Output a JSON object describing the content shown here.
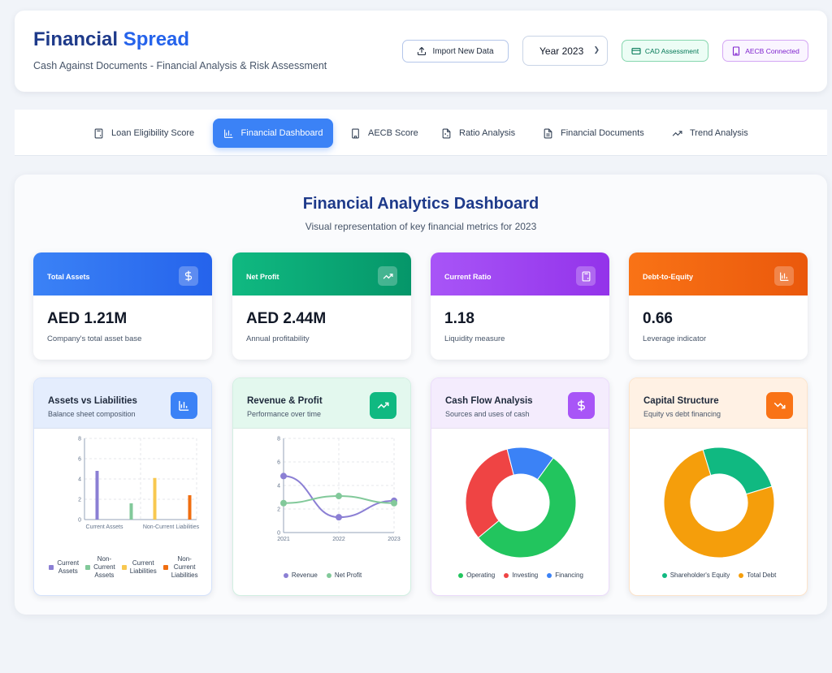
{
  "header": {
    "title_main": "Financial",
    "title_accent": "Spread",
    "subtitle": "Cash Against Documents - Financial Analysis & Risk Assessment",
    "import_label": "Import New Data",
    "year_selected": "Year 2023",
    "cad_badge": "CAD Assessment",
    "aecb_badge": "AECB Connected"
  },
  "tabs": [
    {
      "label": "Loan Eligibility Score",
      "icon": "calculator-icon"
    },
    {
      "label": "Financial Dashboard",
      "icon": "bar-chart-icon",
      "active": true
    },
    {
      "label": "AECB Score",
      "icon": "building-icon"
    },
    {
      "label": "Ratio Analysis",
      "icon": "calculator-doc-icon"
    },
    {
      "label": "Financial Documents",
      "icon": "document-icon"
    },
    {
      "label": "Trend Analysis",
      "icon": "trend-up-icon"
    }
  ],
  "dashboard": {
    "title": "Financial Analytics Dashboard",
    "subtitle": "Visual representation of key financial metrics for 2023"
  },
  "kpis": [
    {
      "label": "Total Assets",
      "value": "AED 1.21M",
      "desc": "Company's total asset base",
      "color_from": "#3b82f6",
      "color_to": "#2563eb",
      "icon": "dollar-icon"
    },
    {
      "label": "Net Profit",
      "value": "AED 2.44M",
      "desc": "Annual profitability",
      "color_from": "#10b981",
      "color_to": "#059669",
      "icon": "trend-up-icon"
    },
    {
      "label": "Current Ratio",
      "value": "1.18",
      "desc": "Liquidity measure",
      "color_from": "#a855f7",
      "color_to": "#9333ea",
      "icon": "calculator-icon"
    },
    {
      "label": "Debt-to-Equity",
      "value": "0.66",
      "desc": "Leverage indicator",
      "color_from": "#f97316",
      "color_to": "#ea580c",
      "icon": "bar-chart-icon"
    }
  ],
  "cards": [
    {
      "title": "Assets vs Liabilities",
      "subtitle": "Balance sheet composition",
      "icon": "bar-chart-icon",
      "accent": "#3b82f6",
      "head_bg": "#e4edfd"
    },
    {
      "title": "Revenue & Profit",
      "subtitle": "Performance over time",
      "icon": "trend-up-icon",
      "accent": "#10b981",
      "head_bg": "#e3f8ee"
    },
    {
      "title": "Cash Flow Analysis",
      "subtitle": "Sources and uses of cash",
      "icon": "dollar-icon",
      "accent": "#a855f7",
      "head_bg": "#f4ecfd"
    },
    {
      "title": "Capital Structure",
      "subtitle": "Equity vs debt financing",
      "icon": "trend-down-icon",
      "accent": "#f97316",
      "head_bg": "#fff1e4"
    }
  ],
  "chart_data": [
    {
      "type": "bar",
      "categories": [
        "Current Assets",
        "Non-Current Liabilities"
      ],
      "series": [
        {
          "name": "Current Assets",
          "color": "#8b7fd4",
          "values": [
            4.8,
            null
          ]
        },
        {
          "name": "Non-Current Assets",
          "color": "#82c99a",
          "values": [
            1.6,
            null
          ]
        },
        {
          "name": "Current Liabilities",
          "color": "#f8c850",
          "values": [
            null,
            4.1
          ]
        },
        {
          "name": "Non-Current Liabilities",
          "color": "#f06e10",
          "values": [
            null,
            2.4
          ]
        }
      ],
      "ylim": [
        0,
        8
      ],
      "yticks": [
        "0",
        "2",
        "4",
        "6",
        "8"
      ],
      "legend_labels": [
        [
          "Current",
          "Assets"
        ],
        [
          "Non-",
          "Current",
          "Assets"
        ],
        [
          "Current",
          "Liabilities"
        ],
        [
          "Non-",
          "Current",
          "Liabilities"
        ]
      ]
    },
    {
      "type": "line",
      "x": [
        "2021",
        "2022",
        "2023"
      ],
      "series": [
        {
          "name": "Revenue",
          "color": "#8b7fd4",
          "values": [
            4.8,
            1.3,
            2.7
          ]
        },
        {
          "name": "Net Profit",
          "color": "#82c99a",
          "values": [
            2.5,
            3.1,
            2.5
          ]
        }
      ],
      "ylim": [
        0,
        8
      ],
      "yticks": [
        "0",
        "2",
        "4",
        "6",
        "8"
      ]
    },
    {
      "type": "pie",
      "donut": true,
      "labels": [
        "Operating",
        "Investing",
        "Financing"
      ],
      "values": [
        54,
        32,
        14
      ],
      "colors": [
        "#22c55e",
        "#ef4444",
        "#3b82f6"
      ]
    },
    {
      "type": "pie",
      "donut": true,
      "labels": [
        "Shareholder's Equity",
        "Total Debt"
      ],
      "values": [
        25,
        75
      ],
      "colors": [
        "#10b981",
        "#f59e0b"
      ]
    }
  ]
}
